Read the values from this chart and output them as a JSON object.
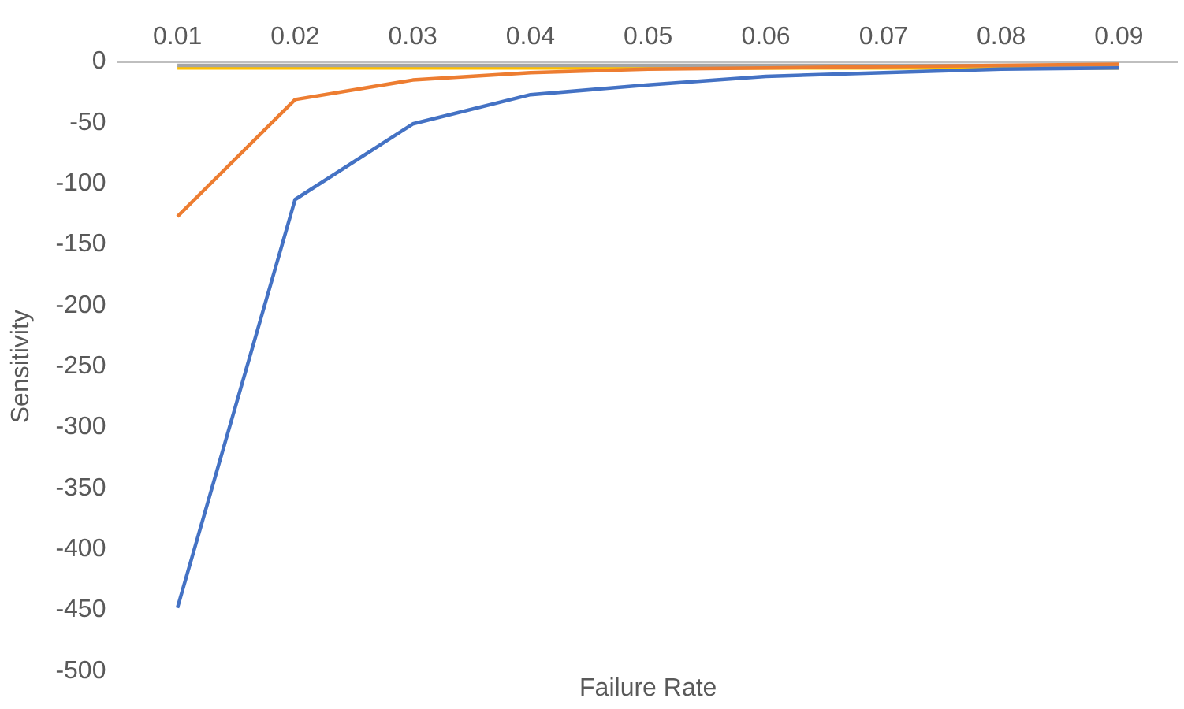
{
  "chart_data": {
    "type": "line",
    "xlabel": "Failure Rate",
    "ylabel": "Sensitivity",
    "categories": [
      "0.01",
      "0.02",
      "0.03",
      "0.04",
      "0.05",
      "0.06",
      "0.07",
      "0.08",
      "0.09"
    ],
    "ylim": [
      -500,
      0
    ],
    "yticks": [
      -500,
      -450,
      -400,
      -350,
      -300,
      -250,
      -200,
      -150,
      -100,
      -50,
      0
    ],
    "grid": false,
    "legend": false,
    "marker": "none",
    "line_style": "solid",
    "series": [
      {
        "color": "#4472c4",
        "values": [
          -448,
          -113,
          -51,
          -27,
          -19,
          -12,
          -9,
          -6,
          -5
        ]
      },
      {
        "color": "#ed7d31",
        "values": [
          -127,
          -31,
          -15,
          -9,
          -6,
          -5,
          -4,
          -3,
          -2
        ]
      },
      {
        "color": "#a5a5a5",
        "values": [
          -3,
          -3,
          -3,
          -3,
          -3,
          -3,
          -3,
          -3,
          -3
        ]
      },
      {
        "color": "#ffc000",
        "values": [
          -5,
          -5,
          -5,
          -5,
          -5,
          -5,
          -5,
          -5,
          -5
        ]
      }
    ]
  }
}
